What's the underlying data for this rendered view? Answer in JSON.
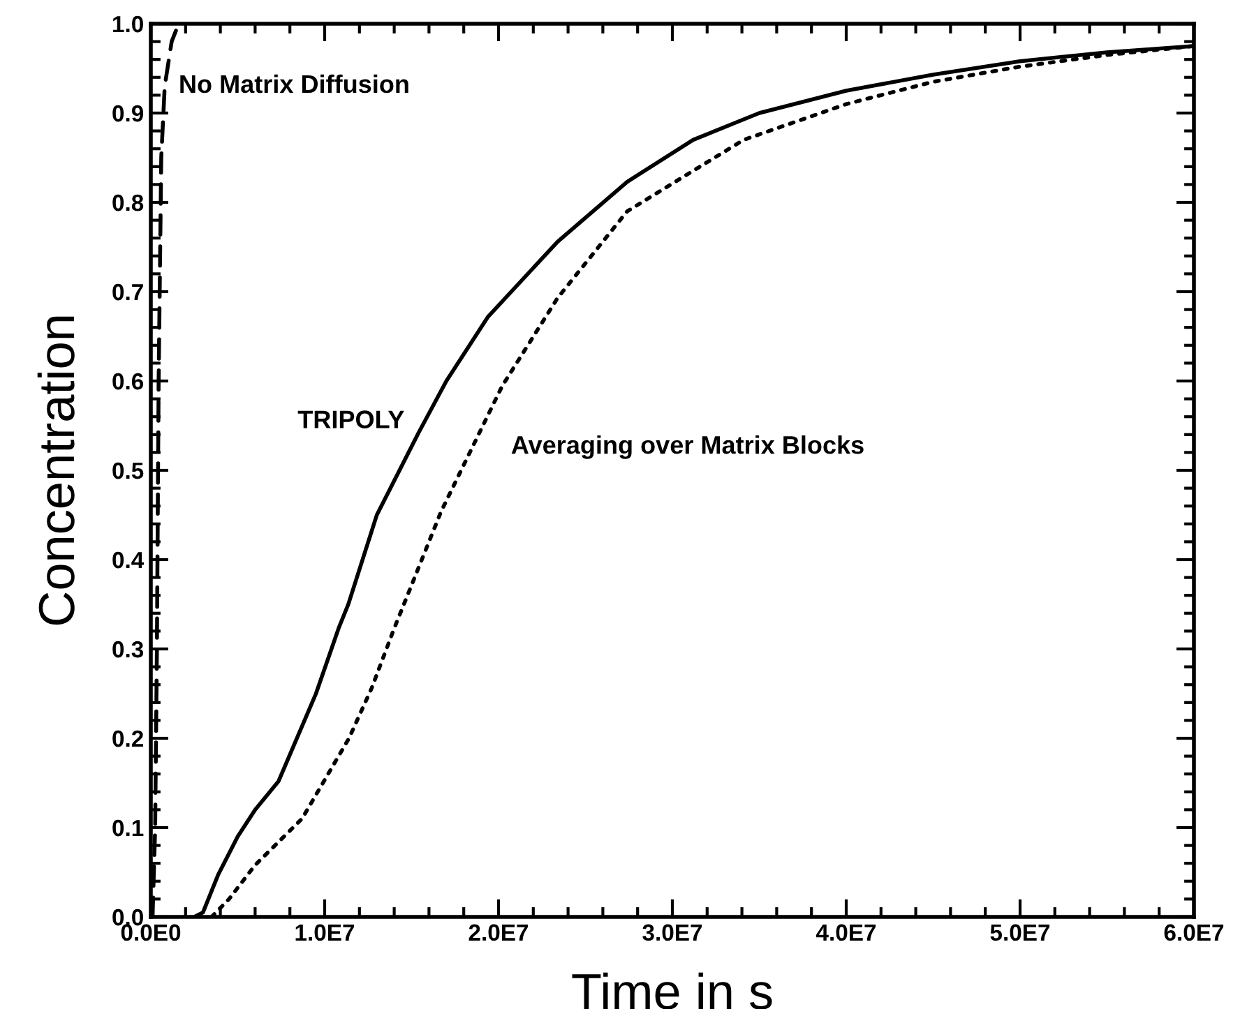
{
  "chart_data": {
    "type": "line",
    "xlabel": "Time in s",
    "ylabel": "Concentration",
    "xlim": [
      0,
      60000000
    ],
    "ylim": [
      0,
      1.0
    ],
    "xticks": [
      {
        "value": 0,
        "label": "0.0E0"
      },
      {
        "value": 10000000,
        "label": "1.0E7"
      },
      {
        "value": 20000000,
        "label": "2.0E7"
      },
      {
        "value": 30000000,
        "label": "3.0E7"
      },
      {
        "value": 40000000,
        "label": "4.0E7"
      },
      {
        "value": 50000000,
        "label": "5.0E7"
      },
      {
        "value": 60000000,
        "label": "6.0E7"
      }
    ],
    "yticks": [
      {
        "value": 0,
        "label": "0.0"
      },
      0.1,
      0.2,
      0.3,
      0.4,
      0.5,
      0.6,
      0.7,
      0.8,
      0.9,
      {
        "value": 1.0,
        "label": "1.0"
      }
    ],
    "grid": false,
    "legend": false,
    "marker": "none",
    "series": [
      {
        "name": "No Matrix Diffusion",
        "color": "#000000",
        "line_style": "dashed",
        "x": [
          100000,
          250000,
          350000,
          450000,
          600000,
          800000,
          1200000,
          1600000
        ],
        "values": [
          0,
          0.1,
          0.3,
          0.6,
          0.85,
          0.93,
          0.98,
          1.0
        ]
      },
      {
        "name": "TRIPOLY",
        "color": "#000000",
        "line_style": "solid",
        "x": [
          2500000,
          3000000,
          3870000,
          5000000,
          6000000,
          7350000,
          9500000,
          10800000,
          11360000,
          13000000,
          15400000,
          17000000,
          19400000,
          23400000,
          27400000,
          31200000,
          35000000,
          40000000,
          45000000,
          50000000,
          55000000,
          60000000
        ],
        "values": [
          0,
          0.005,
          0.047,
          0.09,
          0.12,
          0.152,
          0.25,
          0.323,
          0.35,
          0.45,
          0.542,
          0.6,
          0.672,
          0.756,
          0.823,
          0.87,
          0.9,
          0.925,
          0.943,
          0.958,
          0.968,
          0.975
        ]
      },
      {
        "name": "Averaging over Matrix Blocks",
        "color": "#000000",
        "line_style": "dotted",
        "x": [
          3500000,
          4500000,
          6000000,
          8700000,
          11400000,
          12700000,
          14000000,
          16700000,
          20200000,
          23400000,
          27400000,
          34100000,
          40000000,
          45000000,
          50000000,
          55000000,
          60000000
        ],
        "values": [
          0,
          0.02,
          0.058,
          0.11,
          0.2,
          0.256,
          0.323,
          0.454,
          0.594,
          0.693,
          0.79,
          0.87,
          0.91,
          0.935,
          0.952,
          0.965,
          0.975
        ]
      }
    ]
  }
}
